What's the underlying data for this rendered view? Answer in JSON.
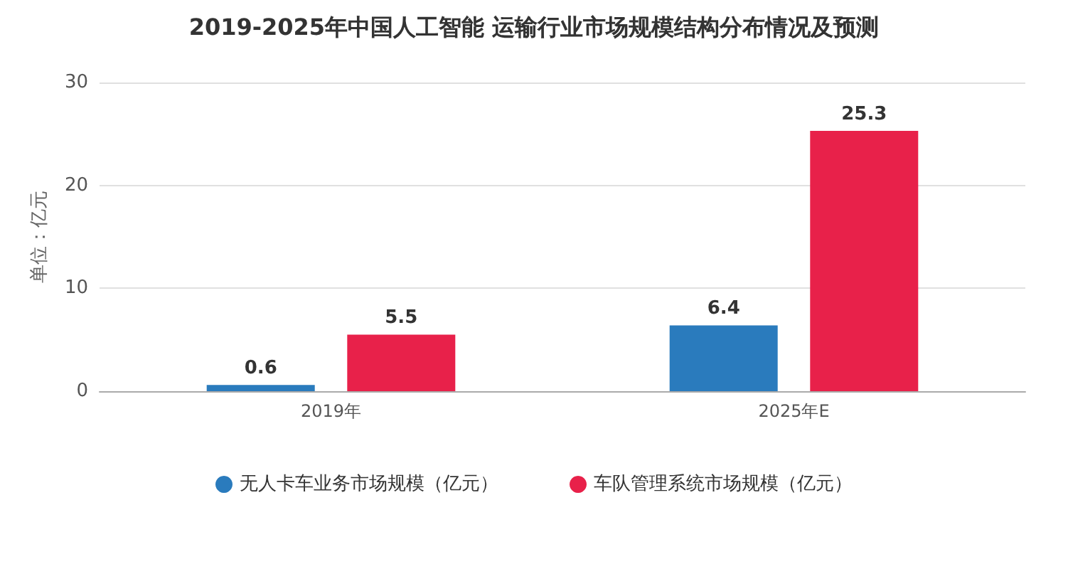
{
  "chart_data": {
    "type": "bar",
    "title": "2019-2025年中国人工智能 运输行业市场规模结构分布情况及预测",
    "ylabel": "单位：亿元",
    "categories": [
      "2019年",
      "2025年E"
    ],
    "series": [
      {
        "name": "无人卡车业务市场规模（亿元）",
        "color": "#2a7bbd",
        "values": [
          0.6,
          6.4
        ]
      },
      {
        "name": "车队管理系统市场规模（亿元）",
        "color": "#e8214a",
        "values": [
          5.5,
          25.3
        ]
      }
    ],
    "ylim": [
      0,
      30
    ],
    "yticks": [
      0,
      10,
      20,
      30
    ],
    "grid": "y",
    "legend": "bottom",
    "data_labels": true
  }
}
